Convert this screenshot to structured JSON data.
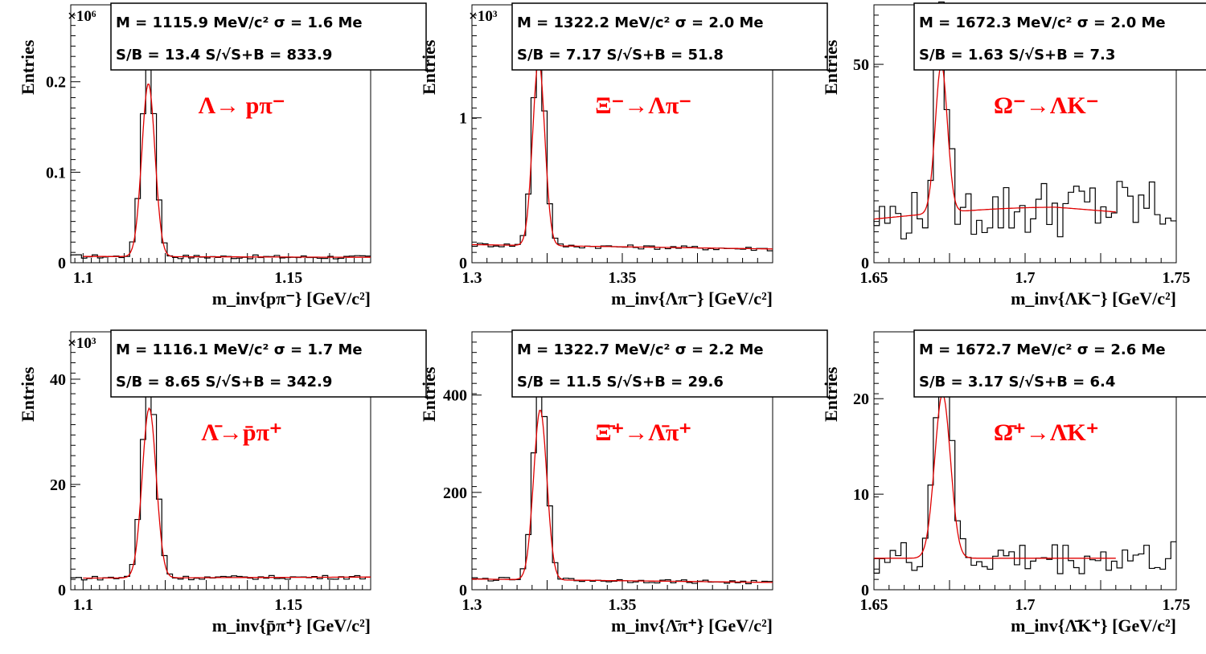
{
  "chart_data": [
    {
      "type": "histogram",
      "id": "p1",
      "ylabel": "Entries",
      "xlabel": "m_inv{pπ⁻} [GeV/c²]",
      "xlim": [
        1.097,
        1.17
      ],
      "ylim": [
        0,
        0.285
      ],
      "y_multiplier": "×10⁶",
      "xticks": [
        "1.1",
        "1.15"
      ],
      "yticks": [
        "0",
        "0.1",
        "0.2"
      ],
      "box": {
        "line1": "M = 1115.9 MeV/c² σ = 1.6 Me",
        "line2": "S/B = 13.4    S/√S+B = 833.9"
      },
      "process": "Λ→ pπ⁻",
      "mean": 1.1159,
      "sigma": 0.0016,
      "peak": 0.215,
      "fit_peak": 0.198,
      "background": [
        0.007,
        0.006
      ],
      "fit_range": [
        1.1,
        1.17
      ]
    },
    {
      "type": "histogram",
      "id": "p2",
      "ylabel": "Entries",
      "xlabel": "m_inv{Λπ⁻} [GeV/c²]",
      "xlim": [
        1.3,
        1.4
      ],
      "ylim": [
        0,
        1.78
      ],
      "y_multiplier": "×10³",
      "xticks": [
        "1.3",
        "1.35"
      ],
      "yticks": [
        "0",
        "1"
      ],
      "box": {
        "line1": "M = 1322.2 MeV/c² σ = 2.0 Me",
        "line2": "S/B = 7.17    S/√S+B = 51.8"
      },
      "process": "Ξ⁻→Λπ⁻",
      "mean": 1.3222,
      "sigma": 0.002,
      "peak": 1.4,
      "fit_peak": 1.4,
      "background": [
        0.125,
        0.095
      ],
      "fit_range": [
        1.3,
        1.4
      ]
    },
    {
      "type": "histogram",
      "id": "p3",
      "ylabel": "Entries",
      "xlabel": "m_inv{ΛK⁻} [GeV/c²]",
      "xlim": [
        1.65,
        1.75
      ],
      "ylim": [
        0,
        65
      ],
      "y_multiplier": "",
      "xticks": [
        "1.65",
        "1.7",
        "1.75"
      ],
      "yticks": [
        "0",
        "50"
      ],
      "box": {
        "line1": "M = 1672.3 MeV/c² σ = 2.0 Me",
        "line2": "S/B = 1.63    S/√S+B = 7.3"
      },
      "process": "Ω⁻→ΛK⁻",
      "mean": 1.6723,
      "sigma": 0.002,
      "peak": 47,
      "fit_peak": 50,
      "background": [
        11,
        14,
        12
      ],
      "fit_range": [
        1.65,
        1.73
      ]
    },
    {
      "type": "histogram",
      "id": "p4",
      "ylabel": "Entries",
      "xlabel": "m_inv{p̄π⁺} [GeV/c²]",
      "xlim": [
        1.097,
        1.17
      ],
      "ylim": [
        0,
        49
      ],
      "y_multiplier": "×10³",
      "xticks": [
        "1.1",
        "1.15"
      ],
      "yticks": [
        "0",
        "20",
        "40"
      ],
      "box": {
        "line1": "M = 1116.1 MeV/c² σ = 1.7 Me",
        "line2": "S/B = 8.65    S/√S+B = 342.9"
      },
      "process": "Λ̄→p̄π⁺",
      "mean": 1.1161,
      "sigma": 0.0017,
      "peak": 37.5,
      "fit_peak": 34.5,
      "background": [
        2.2,
        2.4
      ],
      "fit_range": [
        1.1,
        1.17
      ]
    },
    {
      "type": "histogram",
      "id": "p5",
      "ylabel": "Entries",
      "xlabel": "m_inv{Λ̄π⁺} [GeV/c²]",
      "xlim": [
        1.3,
        1.4
      ],
      "ylim": [
        0,
        530
      ],
      "y_multiplier": "",
      "xticks": [
        "1.3",
        "1.35"
      ],
      "yticks": [
        "0",
        "200",
        "400"
      ],
      "box": {
        "line1": "M = 1322.7 MeV/c² σ = 2.2 Me",
        "line2": "S/B = 11.5    S/√S+B = 29.6"
      },
      "process": "Ξ̄⁺→Λ̄π⁺",
      "mean": 1.3227,
      "sigma": 0.0022,
      "peak": 400,
      "fit_peak": 370,
      "background": [
        22,
        15
      ],
      "fit_range": [
        1.3,
        1.4
      ]
    },
    {
      "type": "histogram",
      "id": "p6",
      "ylabel": "Entries",
      "xlabel": "m_inv{Λ̄K⁺} [GeV/c²]",
      "xlim": [
        1.65,
        1.75
      ],
      "ylim": [
        0,
        27
      ],
      "y_multiplier": "",
      "xticks": [
        "1.65",
        "1.7",
        "1.75"
      ],
      "yticks": [
        "0",
        "10",
        "20"
      ],
      "box": {
        "line1": "M = 1672.7 MeV/c² σ = 2.6 Me",
        "line2": "S/B = 3.17    S/√S+B = 6.4"
      },
      "process": "Ω̄⁺→Λ̄K⁺",
      "mean": 1.6727,
      "sigma": 0.0026,
      "peak": 21,
      "fit_peak": 20.5,
      "background": [
        3.3,
        3.3
      ],
      "fit_range": [
        1.65,
        1.73
      ]
    }
  ],
  "colors": {
    "fit": "#e00000",
    "histogram": "#000000",
    "process_label": "#ff0000"
  }
}
